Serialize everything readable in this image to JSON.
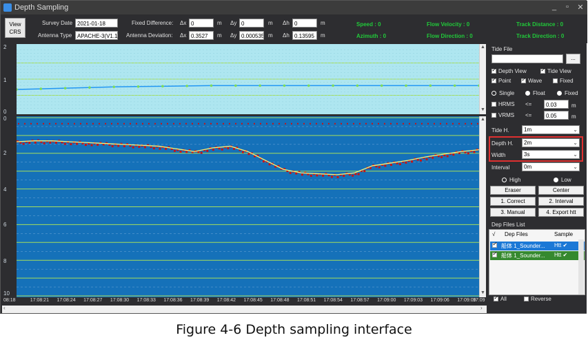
{
  "window": {
    "title": "Depth Sampling",
    "minimize": "_",
    "maximize": "▫",
    "close": "✕"
  },
  "toolbar": {
    "view_crs_line1": "View",
    "view_crs_line2": "CRS",
    "survey_date_label": "Survey Date",
    "survey_date_value": "2021-01-18",
    "antenna_type_label": "Antenna Type",
    "antenna_type_value": "APACHE-3(V1.1)",
    "fixed_difference_label": "Fixed Difference:",
    "antenna_deviation_label": "Antenna Deviation:",
    "dx_label": "Δx",
    "dy_label": "Δy",
    "dh_label": "Δh",
    "unit_m": "m",
    "fixed_dx": "0",
    "fixed_dy": "0",
    "fixed_dh": "0",
    "dev_dx": "0.3527",
    "dev_dy": "0.000535",
    "dev_dh": "0.13595",
    "speed": "Speed :  0",
    "azimuth": "Azimuth : 0",
    "flow_velocity": "Flow Velocity :  0",
    "flow_direction": "Flow Direction :  0",
    "track_distance": "Track Distance :  0",
    "track_direction": "Track Direction : 0"
  },
  "axes": {
    "tide_ticks": [
      "2",
      "1",
      "0"
    ],
    "depth_ticks": [
      "0",
      "2",
      "4",
      "6",
      "8",
      "10"
    ],
    "time_ticks": [
      "08:18",
      "17:08:21",
      "17:08:24",
      "17:08:27",
      "17:08:30",
      "17:08:33",
      "17:08:36",
      "17:08:39",
      "17:08:42",
      "17:08:45",
      "17:08:48",
      "17:08:51",
      "17:08:54",
      "17:08:57",
      "17:09:00",
      "17:09:03",
      "17:09:06",
      "17:09:09",
      "17:09"
    ]
  },
  "side_panel": {
    "tide_file_label": "Tide File",
    "tide_file_value": "",
    "browse_label": "...",
    "depth_view": "Depth View",
    "tide_view": "Tide View",
    "point": "Point",
    "wave": "Wave",
    "fixed": "Fixed",
    "single": "Single",
    "float": "Float",
    "fixed_radio": "Fixed",
    "hrms_label": "HRMS",
    "vrms_label": "VRMS",
    "le": "<=",
    "hrms_value": "0.03",
    "vrms_value": "0.05",
    "unit_m": "m",
    "tide_h_label": "Tide H.",
    "tide_h_value": "1m",
    "depth_h_label": "Depth H.",
    "depth_h_value": "2m",
    "width_label": "Width",
    "width_value": "3s",
    "interval_label": "Interval",
    "interval_value": "0m",
    "high": "High",
    "low": "Low",
    "eraser": "Eraser",
    "center": "Center",
    "correct": "1. Correct",
    "interval_btn": "2. Interval",
    "manual": "3. Manual",
    "export": "4. Export htt",
    "dep_files_list": "Dep Files List",
    "col_check": "√",
    "col_files": "Dep Files",
    "col_sample": "Sample",
    "files": [
      {
        "name": "船体 1_Sounder...",
        "sample": "Htt ✔"
      },
      {
        "name": "船体 1_Sounder...",
        "sample": "Htt ✔"
      }
    ],
    "all": "All",
    "reverse": "Reverse"
  },
  "chart_data": {
    "type": "line",
    "tide": {
      "ylim": [
        0,
        2
      ],
      "values": [
        0.68,
        0.7,
        0.72,
        0.74,
        0.76,
        0.77,
        0.78,
        0.79,
        0.8,
        0.8,
        0.8,
        0.8,
        0.8,
        0.8,
        0.8,
        0.8,
        0.8,
        0.8,
        0.8,
        0.8
      ]
    },
    "depth": {
      "ylim": [
        0,
        10
      ],
      "values": [
        1.35,
        1.3,
        1.3,
        1.35,
        1.4,
        1.45,
        1.5,
        1.55,
        1.6,
        1.75,
        1.9,
        1.7,
        1.6,
        1.9,
        2.4,
        2.9,
        3.1,
        3.15,
        3.2,
        3.1,
        2.7,
        2.55,
        2.4,
        2.2,
        2.05,
        1.9,
        1.8
      ]
    },
    "colors": {
      "tide_line": "#2196f3",
      "tide_points": "#7ddc5a",
      "depth_points": "#cc1111",
      "depth_line": "#f5f57a",
      "grid": "#a6e05a"
    }
  },
  "caption": "Figure 4-6 Depth sampling interface"
}
